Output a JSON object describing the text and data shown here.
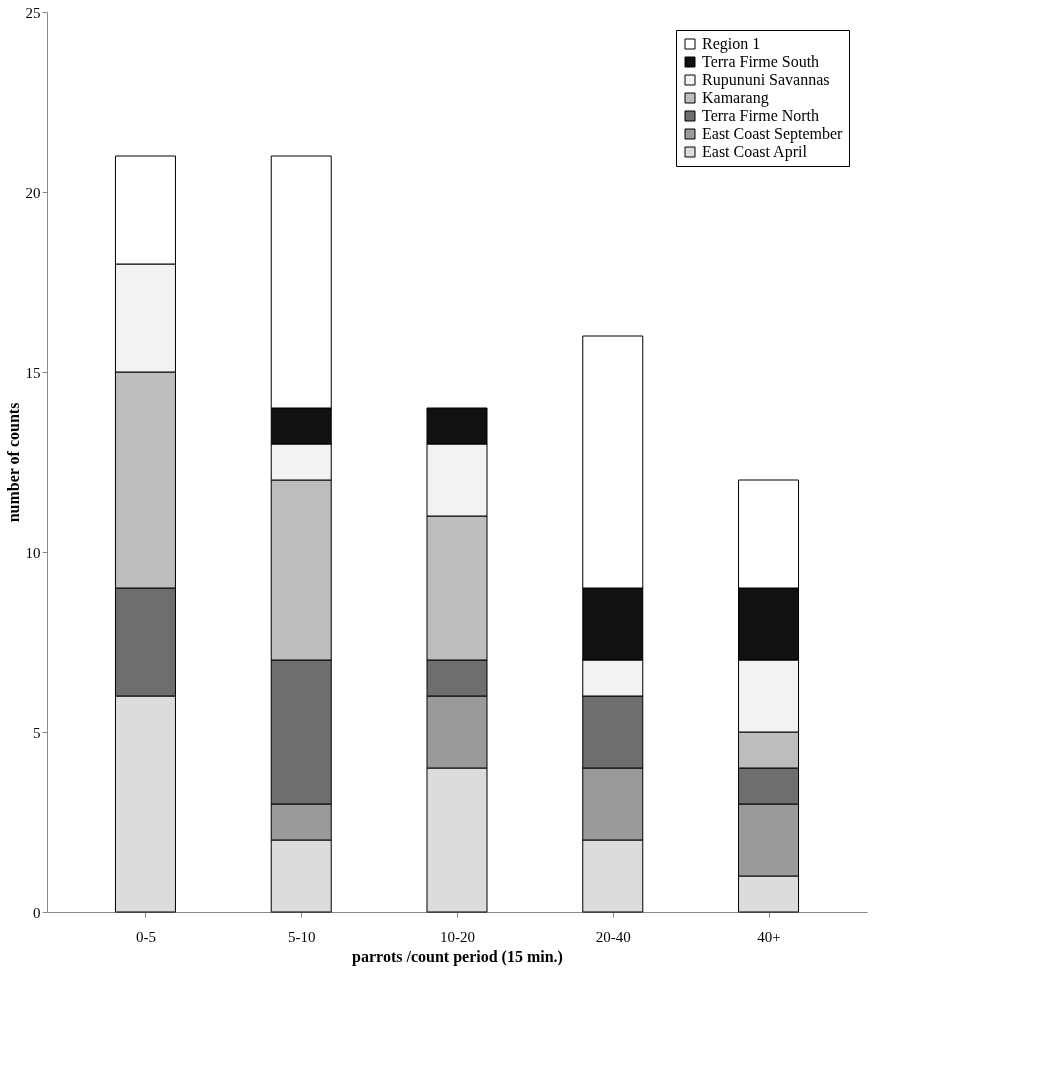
{
  "chart_data": {
    "type": "bar",
    "stacked": true,
    "xlabel": "parrots /count period (15 min.)",
    "ylabel": "number of counts",
    "categories": [
      "0-5",
      "5-10",
      "10-20",
      "20-40",
      "40+"
    ],
    "series": [
      {
        "name": "East Coast April",
        "color": "#dcdcdc",
        "values": [
          6,
          2,
          4,
          2,
          1
        ]
      },
      {
        "name": "East Coast September",
        "color": "#9a9a9a",
        "values": [
          0,
          1,
          2,
          2,
          2
        ]
      },
      {
        "name": "Terra Firme North",
        "color": "#6e6e6e",
        "values": [
          3,
          4,
          1,
          2,
          1
        ]
      },
      {
        "name": "Kamarang",
        "color": "#bdbdbd",
        "values": [
          6,
          5,
          4,
          0,
          1
        ]
      },
      {
        "name": "Rupununi Savannas",
        "color": "#f2f2f2",
        "values": [
          3,
          1,
          2,
          1,
          2
        ]
      },
      {
        "name": "Terra Firme South",
        "color": "#111111",
        "values": [
          0,
          1,
          1,
          2,
          2
        ]
      },
      {
        "name": "Region 1",
        "color": "#ffffff",
        "values": [
          3,
          7,
          0,
          7,
          3
        ]
      }
    ],
    "ylim": [
      0,
      25
    ],
    "yticks": [
      0,
      5,
      10,
      15,
      20,
      25
    ],
    "grid": false,
    "legend": "top right"
  }
}
